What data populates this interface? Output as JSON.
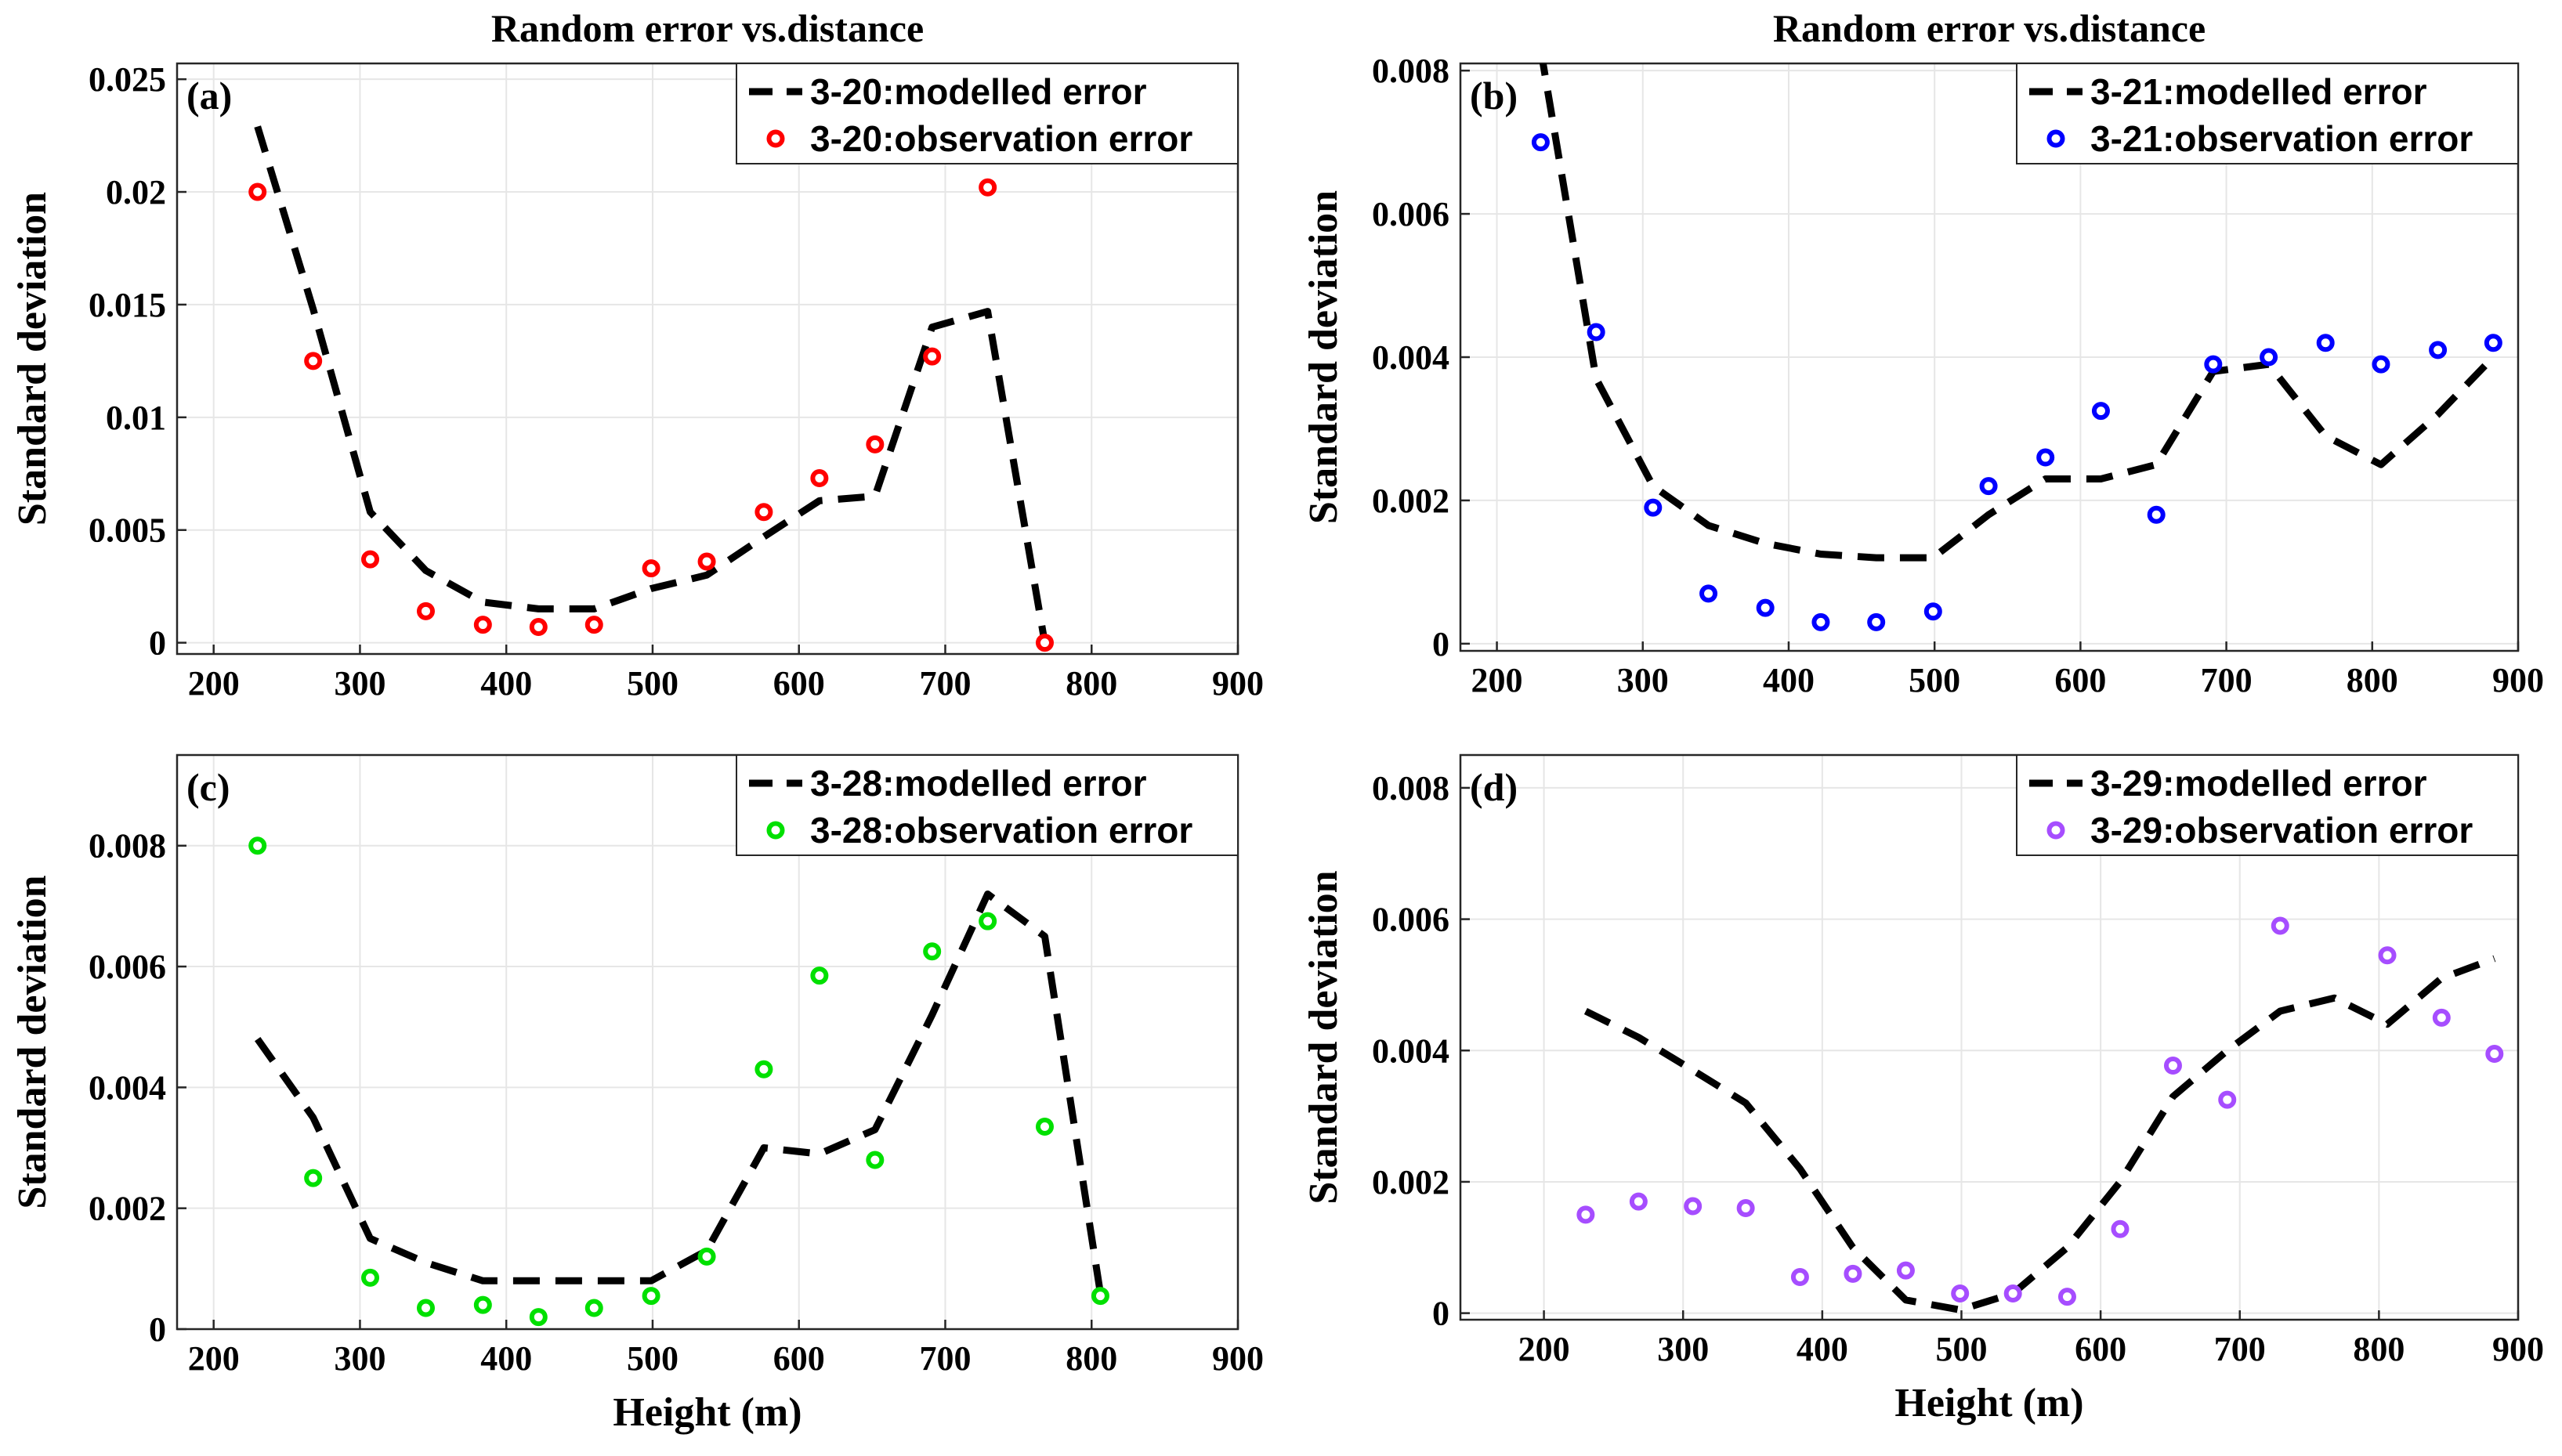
{
  "chart_data": [
    {
      "type": "line",
      "panel_label": "(a)",
      "title": "Random error vs.distance",
      "xlabel": "",
      "ylabel": "Standard deviation",
      "xlim": [
        175,
        900
      ],
      "ylim": [
        -0.0005,
        0.0257
      ],
      "xticks": [
        200,
        300,
        400,
        500,
        600,
        700,
        800,
        900
      ],
      "yticks": [
        0,
        0.005,
        0.01,
        0.015,
        0.02,
        0.025
      ],
      "ytick_labels": [
        "0",
        "0.005",
        "0.01",
        "0.015",
        "0.02",
        "0.025"
      ],
      "grid": true,
      "legend_position": "top-right",
      "model_color": "#000000",
      "obs_color": "#ff0000",
      "series": [
        {
          "name": "3-20:modelled error",
          "kind": "dashed-line",
          "x": [
            230,
            268,
            307,
            345,
            384,
            422,
            460,
            499,
            537,
            576,
            614,
            652,
            691,
            729,
            768
          ],
          "y": [
            0.0229,
            0.0148,
            0.0058,
            0.0032,
            0.0018,
            0.0015,
            0.0015,
            0.0024,
            0.003,
            0.0047,
            0.0063,
            0.0065,
            0.014,
            0.0147,
            0.0
          ]
        },
        {
          "name": "3-20:observation error",
          "kind": "circles",
          "x": [
            230,
            268,
            307,
            345,
            384,
            422,
            460,
            499,
            537,
            576,
            614,
            652,
            691,
            729,
            768
          ],
          "y": [
            0.02,
            0.0125,
            0.0037,
            0.0014,
            0.0008,
            0.0007,
            0.0008,
            0.0033,
            0.0036,
            0.0058,
            0.0073,
            0.0088,
            0.0127,
            0.0202,
            0.0
          ]
        }
      ]
    },
    {
      "type": "line",
      "panel_label": "(b)",
      "title": "Random error vs.distance",
      "xlabel": "",
      "ylabel": "Standard deviation",
      "xlim": [
        175,
        900
      ],
      "ylim": [
        -0.0001,
        0.0081
      ],
      "xticks": [
        200,
        300,
        400,
        500,
        600,
        700,
        800,
        900
      ],
      "yticks": [
        0,
        0.002,
        0.004,
        0.006,
        0.008
      ],
      "ytick_labels": [
        "0",
        "0.002",
        "0.004",
        "0.006",
        "0.008"
      ],
      "grid": true,
      "legend_position": "top-right",
      "model_color": "#000000",
      "obs_color": "#0000ff",
      "series": [
        {
          "name": "3-21:modelled error",
          "kind": "dashed-line",
          "x": [
            230,
            268,
            307,
            345,
            384,
            422,
            460,
            499,
            537,
            576,
            614,
            652,
            691,
            729,
            768,
            806,
            845,
            883
          ],
          "y": [
            0.0083,
            0.0037,
            0.0022,
            0.00165,
            0.0014,
            0.00125,
            0.0012,
            0.0012,
            0.0018,
            0.0023,
            0.0023,
            0.0025,
            0.0038,
            0.0039,
            0.0029,
            0.0025,
            0.0032,
            0.004
          ]
        },
        {
          "name": "3-21:observation error",
          "kind": "circles",
          "x": [
            230,
            268,
            307,
            345,
            384,
            422,
            460,
            499,
            537,
            576,
            614,
            652,
            691,
            729,
            768,
            806,
            845,
            883
          ],
          "y": [
            0.007,
            0.00435,
            0.0019,
            0.0007,
            0.0005,
            0.0003,
            0.0003,
            0.00045,
            0.0022,
            0.0026,
            0.00325,
            0.0018,
            0.0039,
            0.004,
            0.0042,
            0.0039,
            0.0041,
            0.0042
          ]
        }
      ]
    },
    {
      "type": "line",
      "panel_label": "(c)",
      "title": "",
      "xlabel": "Height (m)",
      "ylabel": "Standard deviation",
      "xlim": [
        175,
        900
      ],
      "ylim": [
        0,
        0.0095
      ],
      "xticks": [
        200,
        300,
        400,
        500,
        600,
        700,
        800,
        900
      ],
      "yticks": [
        0,
        0.002,
        0.004,
        0.006,
        0.008
      ],
      "ytick_labels": [
        "0",
        "0.002",
        "0.004",
        "0.006",
        "0.008"
      ],
      "grid": true,
      "legend_position": "top-right",
      "model_color": "#000000",
      "obs_color": "#00e000",
      "series": [
        {
          "name": "3-28:modelled error",
          "kind": "dashed-line",
          "x": [
            230,
            268,
            307,
            345,
            384,
            422,
            460,
            499,
            537,
            576,
            614,
            652,
            691,
            729,
            768,
            806
          ],
          "y": [
            0.0048,
            0.0035,
            0.0015,
            0.0011,
            0.0008,
            0.0008,
            0.0008,
            0.0008,
            0.0013,
            0.003,
            0.0029,
            0.0033,
            0.0052,
            0.0072,
            0.0065,
            0.0006
          ]
        },
        {
          "name": "3-28:observation error",
          "kind": "circles",
          "x": [
            230,
            268,
            307,
            345,
            384,
            422,
            460,
            499,
            537,
            576,
            614,
            652,
            691,
            729,
            768,
            806
          ],
          "y": [
            0.008,
            0.0025,
            0.00085,
            0.00035,
            0.0004,
            0.0002,
            0.00035,
            0.00055,
            0.0012,
            0.0043,
            0.00585,
            0.0028,
            0.00625,
            0.00675,
            0.00335,
            0.00055
          ]
        }
      ]
    },
    {
      "type": "line",
      "panel_label": "(d)",
      "title": "",
      "xlabel": "Height (m)",
      "ylabel": "Standard deviation",
      "xlim": [
        140,
        900
      ],
      "ylim": [
        -0.0001,
        0.0085
      ],
      "xticks": [
        200,
        300,
        400,
        500,
        600,
        700,
        800,
        900
      ],
      "yticks": [
        0,
        0.002,
        0.004,
        0.006,
        0.008
      ],
      "ytick_labels": [
        "0",
        "0.002",
        "0.004",
        "0.006",
        "0.008"
      ],
      "grid": true,
      "legend_position": "top-right",
      "model_color": "#000000",
      "obs_color": "#a64dff",
      "series": [
        {
          "name": "3-29:modelled error",
          "kind": "dashed-line",
          "x": [
            230,
            268,
            307,
            345,
            384,
            422,
            460,
            499,
            537,
            576,
            614,
            652,
            691,
            729,
            768,
            806,
            845,
            883
          ],
          "y": [
            0.0046,
            0.0042,
            0.0037,
            0.0032,
            0.0022,
            0.001,
            0.0002,
            5e-05,
            0.0003,
            0.001,
            0.002,
            0.0033,
            0.004,
            0.0046,
            0.0048,
            0.0044,
            0.0051,
            0.0054
          ]
        },
        {
          "name": "3-29:observation error",
          "kind": "circles",
          "x": [
            230,
            268,
            307,
            345,
            384,
            422,
            460,
            499,
            537,
            576,
            614,
            652,
            691,
            729,
            768,
            806,
            845,
            883
          ],
          "y": [
            0.0015,
            0.0017,
            0.00163,
            0.0016,
            0.00055,
            0.0006,
            0.00065,
            0.0003,
            0.0003,
            0.00025,
            0.00128,
            0.00377,
            0.00325,
            0.0059,
            null,
            0.00545,
            0.0045,
            0.00395
          ]
        }
      ]
    }
  ]
}
